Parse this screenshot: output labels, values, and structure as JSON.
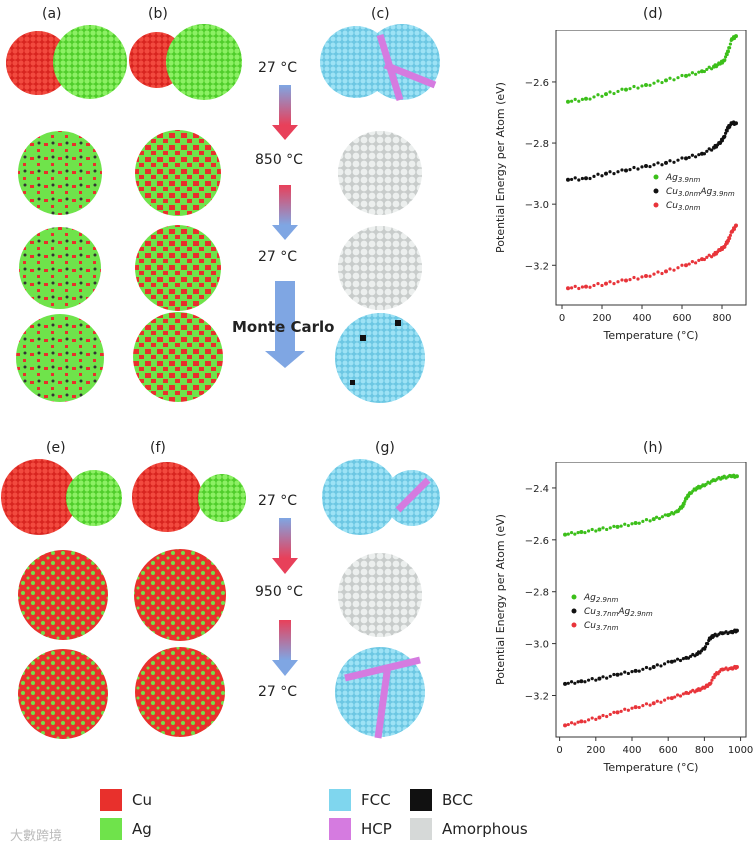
{
  "panel_labels": {
    "a": "(a)",
    "b": "(b)",
    "c": "(c)",
    "d": "(d)",
    "e": "(e)",
    "f": "(f)",
    "g": "(g)",
    "h": "(h)"
  },
  "top_temps": [
    "27 °C",
    "850 °C",
    "27 °C"
  ],
  "monte_carlo": "Monte Carlo",
  "bottom_temps": [
    "27 °C",
    "950 °C",
    "27 °C"
  ],
  "colors": {
    "cu": "#e8302c",
    "ag": "#6fe34b",
    "fcc": "#7fd6ee",
    "hcp": "#d57be0",
    "bcc": "#111111",
    "amorphous": "#d6d9d8"
  },
  "legend": {
    "cu": "Cu",
    "ag": "Ag",
    "fcc": "FCC",
    "hcp": "HCP",
    "bcc": "BCC",
    "amorphous": "Amorphous"
  },
  "watermark": "大數跨境",
  "chart_data": [
    {
      "type": "scatter",
      "xlabel": "Temperature (°C)",
      "ylabel": "Potential Energy per Atom (eV)",
      "xlim": [
        -30,
        920
      ],
      "ylim": [
        -3.33,
        -2.43
      ],
      "xticks": [
        0,
        200,
        400,
        600,
        800
      ],
      "yticks": [
        -3.2,
        -3.0,
        -2.8,
        -2.6
      ],
      "ytick_labels": [
        "−3.2",
        "−3.0",
        "−2.8",
        "−2.6"
      ],
      "legend_position": "center-right",
      "series": [
        {
          "name": "Ag3.9nm",
          "legend_main": "Ag",
          "legend_sub": "3.9nm",
          "color": "#3cbf1a",
          "x": [
            30,
            120,
            220,
            320,
            420,
            520,
            620,
            700,
            760,
            790,
            810,
            830,
            850,
            870
          ],
          "y": [
            -2.665,
            -2.655,
            -2.64,
            -2.625,
            -2.61,
            -2.595,
            -2.58,
            -2.565,
            -2.55,
            -2.54,
            -2.53,
            -2.5,
            -2.46,
            -2.45
          ]
        },
        {
          "name": "Cu3.0nmAg3.9nm",
          "legend_main1": "Cu",
          "legend_sub1": "3.0nm",
          "legend_main2": "Ag",
          "legend_sub2": "3.9nm",
          "color": "#111111",
          "x": [
            30,
            120,
            220,
            320,
            420,
            520,
            620,
            700,
            760,
            790,
            810,
            830,
            850,
            870
          ],
          "y": [
            -2.92,
            -2.915,
            -2.9,
            -2.89,
            -2.875,
            -2.865,
            -2.85,
            -2.835,
            -2.815,
            -2.8,
            -2.78,
            -2.75,
            -2.735,
            -2.735
          ]
        },
        {
          "name": "Cu3.0nm",
          "legend_main": "Cu",
          "legend_sub": "3.0nm",
          "color": "#e8343a",
          "x": [
            30,
            120,
            220,
            320,
            420,
            520,
            620,
            700,
            760,
            790,
            810,
            830,
            850,
            870
          ],
          "y": [
            -3.275,
            -3.27,
            -3.26,
            -3.25,
            -3.235,
            -3.22,
            -3.2,
            -3.18,
            -3.165,
            -3.15,
            -3.14,
            -3.12,
            -3.09,
            -3.07
          ]
        }
      ]
    },
    {
      "type": "scatter",
      "xlabel": "Temperature (°C)",
      "ylabel": "Potential Energy per Atom (eV)",
      "xlim": [
        -20,
        1030
      ],
      "ylim": [
        -3.36,
        -2.3
      ],
      "xticks": [
        0,
        200,
        400,
        600,
        800,
        1000
      ],
      "yticks": [
        -3.2,
        -3.0,
        -2.8,
        -2.6,
        -2.4
      ],
      "ytick_labels": [
        "−3.2",
        "−3.0",
        "−2.8",
        "−2.6",
        "−2.4"
      ],
      "legend_position": "center-left",
      "series": [
        {
          "name": "Ag2.9nm",
          "legend_main": "Ag",
          "legend_sub": "2.9nm",
          "color": "#3cbf1a",
          "x": [
            30,
            120,
            220,
            320,
            420,
            520,
            600,
            650,
            680,
            700,
            720,
            760,
            800,
            850,
            900,
            950,
            980
          ],
          "y": [
            -2.58,
            -2.57,
            -2.56,
            -2.55,
            -2.535,
            -2.52,
            -2.505,
            -2.49,
            -2.47,
            -2.44,
            -2.42,
            -2.4,
            -2.39,
            -2.37,
            -2.36,
            -2.355,
            -2.355
          ]
        },
        {
          "name": "Cu3.7nmAg2.9nm",
          "legend_main1": "Cu",
          "legend_sub1": "3.7nm",
          "legend_main2": "Ag",
          "legend_sub2": "2.9nm",
          "color": "#111111",
          "x": [
            30,
            120,
            220,
            320,
            420,
            520,
            620,
            700,
            760,
            800,
            830,
            850,
            900,
            950,
            980
          ],
          "y": [
            -3.155,
            -3.145,
            -3.135,
            -3.12,
            -3.105,
            -3.09,
            -3.07,
            -3.055,
            -3.04,
            -3.02,
            -2.98,
            -2.97,
            -2.96,
            -2.955,
            -2.95
          ]
        },
        {
          "name": "Cu3.7nm",
          "legend_main": "Cu",
          "legend_sub": "3.7nm",
          "color": "#e8343a",
          "x": [
            30,
            120,
            220,
            320,
            420,
            520,
            620,
            700,
            760,
            800,
            830,
            860,
            900,
            950,
            980
          ],
          "y": [
            -3.315,
            -3.3,
            -3.285,
            -3.265,
            -3.245,
            -3.23,
            -3.21,
            -3.19,
            -3.18,
            -3.17,
            -3.155,
            -3.12,
            -3.1,
            -3.095,
            -3.09
          ]
        }
      ]
    }
  ]
}
